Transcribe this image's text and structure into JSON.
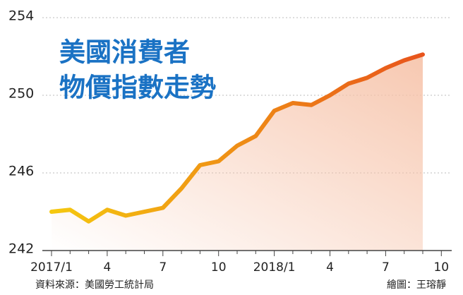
{
  "chart_data": {
    "type": "line",
    "title_lines": [
      "美國消費者",
      "物價指數走勢"
    ],
    "categories": [
      "2017/1",
      null,
      null,
      "4",
      null,
      null,
      "7",
      null,
      null,
      "10",
      null,
      null,
      "2018/1",
      null,
      null,
      "4",
      null,
      null,
      "7",
      null,
      null,
      "10"
    ],
    "values": [
      244.0,
      244.1,
      243.5,
      244.1,
      243.8,
      244.0,
      244.2,
      245.2,
      246.4,
      246.6,
      247.4,
      247.9,
      249.2,
      249.6,
      249.5,
      250.0,
      250.6,
      250.9,
      251.4,
      251.8,
      252.1,
      null
    ],
    "line_colors": [
      "#f5c80f",
      "#e8541c"
    ],
    "area_color": "#f6c2a8",
    "ylim": [
      242,
      254
    ],
    "yticks": [
      242,
      246,
      250,
      254
    ],
    "grid": true,
    "source": "資料來源：美國勞工統計局",
    "credit": "繪圖：王瑢靜"
  }
}
